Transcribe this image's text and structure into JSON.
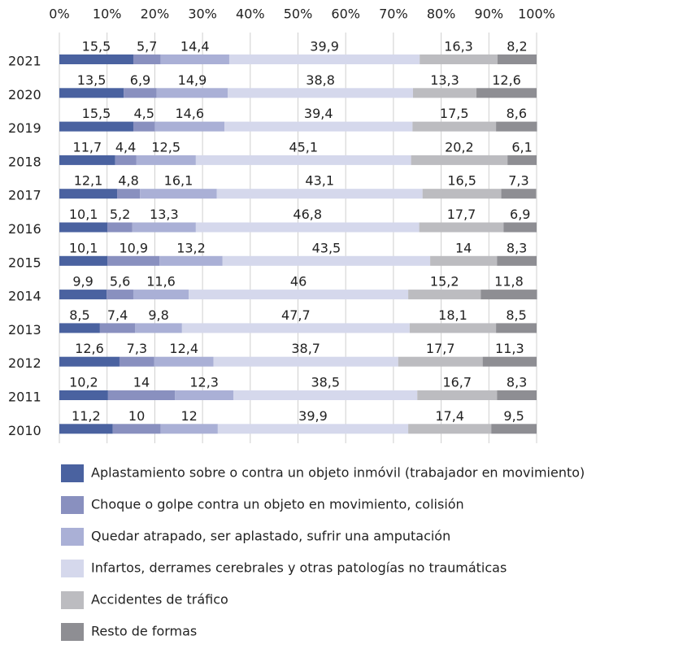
{
  "chart_data": {
    "type": "stacked_bar_horizontal",
    "categories": [
      "2021",
      "2020",
      "2019",
      "2018",
      "2017",
      "2016",
      "2015",
      "2014",
      "2013",
      "2012",
      "2011",
      "2010"
    ],
    "series": [
      {
        "name": "Aplastamiento sobre o contra un objeto inmóvil (trabajador en movimiento)",
        "color": "#4a62a0",
        "values": [
          15.5,
          13.5,
          15.5,
          11.7,
          12.1,
          10.1,
          10.1,
          9.9,
          8.5,
          12.6,
          10.2,
          11.2
        ],
        "value_labels": [
          "15,5",
          "13,5",
          "15,5",
          "11,7",
          "12,1",
          "10,1",
          "10,1",
          "9,9",
          "8,5",
          "12,6",
          "10,2",
          "11,2"
        ]
      },
      {
        "name": "Choque o golpe contra un objeto en movimiento, colisión",
        "color": "#8990bf",
        "values": [
          5.7,
          6.9,
          4.5,
          4.4,
          4.8,
          5.2,
          10.9,
          5.6,
          7.4,
          7.3,
          14,
          10
        ],
        "value_labels": [
          "5,7",
          "6,9",
          "4,5",
          "4,4",
          "4,8",
          "5,2",
          "10,9",
          "5,6",
          "7,4",
          "7,3",
          "14",
          "10"
        ]
      },
      {
        "name": "Quedar atrapado, ser aplastado, sufrir una amputación",
        "color": "#aab0d6",
        "values": [
          14.4,
          14.9,
          14.6,
          12.5,
          16.1,
          13.3,
          13.2,
          11.6,
          9.8,
          12.4,
          12.3,
          12
        ],
        "value_labels": [
          "14,4",
          "14,9",
          "14,6",
          "12,5",
          "16,1",
          "13,3",
          "13,2",
          "11,6",
          "9,8",
          "12,4",
          "12,3",
          "12"
        ]
      },
      {
        "name": "Infartos, derrames cerebrales y otras patologías no traumáticas",
        "color": "#d5d8ec",
        "values": [
          39.9,
          38.8,
          39.4,
          45.1,
          43.1,
          46.8,
          43.5,
          46,
          47.7,
          38.7,
          38.5,
          39.9
        ],
        "value_labels": [
          "39,9",
          "38,8",
          "39,4",
          "45,1",
          "43,1",
          "46,8",
          "43,5",
          "46",
          "47,7",
          "38,7",
          "38,5",
          "39,9"
        ]
      },
      {
        "name": "Accidentes de tráfico",
        "color": "#bcbcc0",
        "values": [
          16.3,
          13.3,
          17.5,
          20.2,
          16.5,
          17.7,
          14,
          15.2,
          18.1,
          17.7,
          16.7,
          17.4
        ],
        "value_labels": [
          "16,3",
          "13,3",
          "17,5",
          "20,2",
          "16,5",
          "17,7",
          "14",
          "15,2",
          "18,1",
          "17,7",
          "16,7",
          "17,4"
        ]
      },
      {
        "name": "Resto de formas",
        "color": "#8e8e93",
        "values": [
          8.2,
          12.6,
          8.6,
          6.1,
          7.3,
          6.9,
          8.3,
          11.8,
          8.5,
          11.3,
          8.3,
          9.5
        ],
        "value_labels": [
          "8,2",
          "12,6",
          "8,6",
          "6,1",
          "7,3",
          "6,9",
          "8,3",
          "11,8",
          "8,5",
          "11,3",
          "8,3",
          "9,5"
        ]
      }
    ],
    "xlim": [
      0,
      100
    ],
    "xticks": [
      {
        "value": 0,
        "label": "0%"
      },
      {
        "value": 10,
        "label": "10%"
      },
      {
        "value": 20,
        "label": "20%"
      },
      {
        "value": 30,
        "label": "30%"
      },
      {
        "value": 40,
        "label": "40%"
      },
      {
        "value": 50,
        "label": "50%"
      },
      {
        "value": 60,
        "label": "60%"
      },
      {
        "value": 70,
        "label": "70%"
      },
      {
        "value": 80,
        "label": "80%"
      },
      {
        "value": 90,
        "label": "90%"
      },
      {
        "value": 100,
        "label": "100%"
      }
    ],
    "grid": true
  }
}
